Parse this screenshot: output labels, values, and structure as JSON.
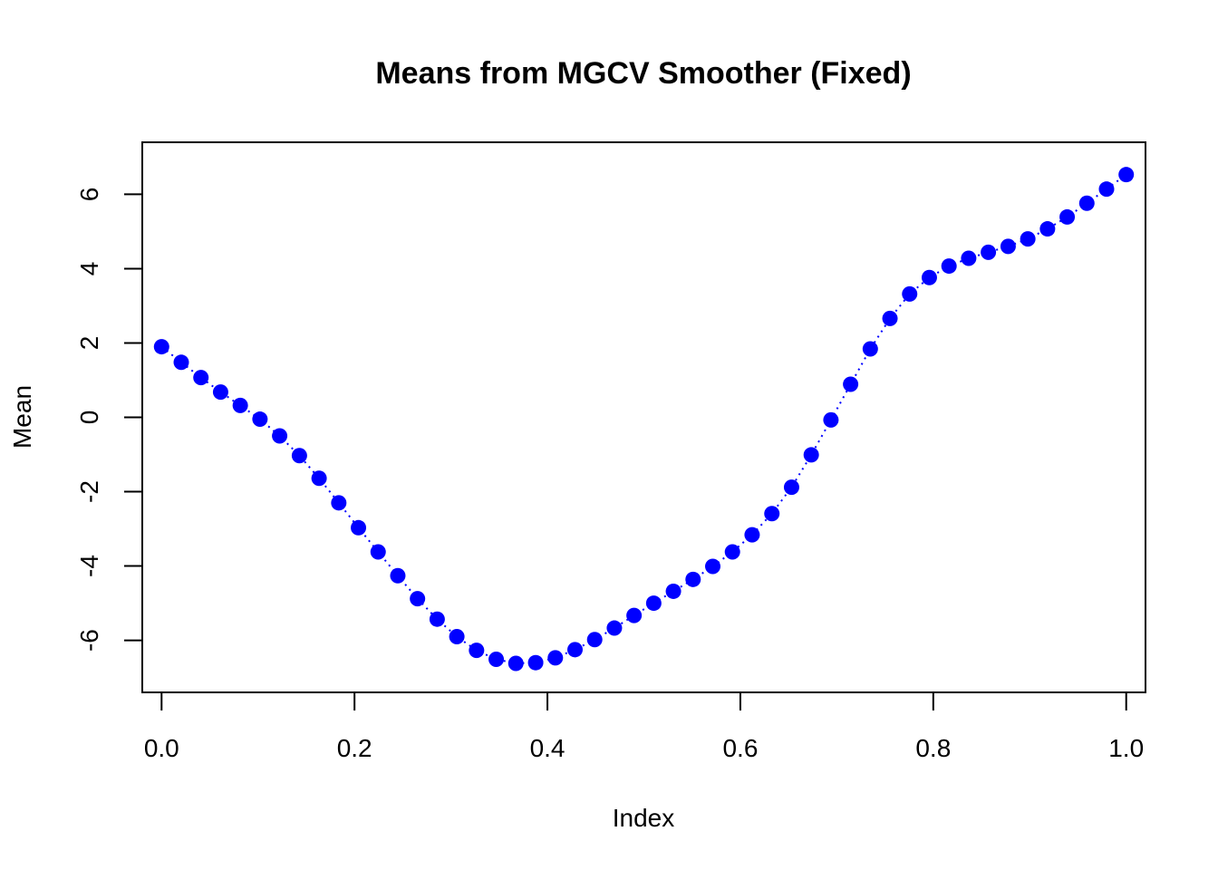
{
  "chart_data": {
    "type": "scatter",
    "title": "Means from MGCV Smoother (Fixed)",
    "xlabel": "Index",
    "ylabel": "Mean",
    "xlim": [
      -0.02,
      1.02
    ],
    "ylim": [
      -7.4,
      7.4
    ],
    "x_ticks": [
      0.0,
      0.2,
      0.4,
      0.6,
      0.8,
      1.0
    ],
    "x_tick_labels": [
      "0.0",
      "0.2",
      "0.4",
      "0.6",
      "0.8",
      "1.0"
    ],
    "y_ticks": [
      -6,
      -4,
      -2,
      0,
      2,
      4,
      6
    ],
    "y_tick_labels": [
      "-6",
      "-4",
      "-2",
      "0",
      "2",
      "4",
      "6"
    ],
    "grid": false,
    "point_color": "#0000FF",
    "line_color": "#0000FF",
    "line_style": "dotted",
    "x": [
      0.0,
      0.0204,
      0.0408,
      0.0612,
      0.0816,
      0.102,
      0.1224,
      0.1429,
      0.1633,
      0.1837,
      0.2041,
      0.2245,
      0.2449,
      0.2653,
      0.2857,
      0.3061,
      0.3265,
      0.3469,
      0.3673,
      0.3878,
      0.4082,
      0.4286,
      0.449,
      0.4694,
      0.4898,
      0.5102,
      0.5306,
      0.551,
      0.5714,
      0.5918,
      0.6122,
      0.6327,
      0.6531,
      0.6735,
      0.6939,
      0.7143,
      0.7347,
      0.7551,
      0.7755,
      0.7959,
      0.8163,
      0.8367,
      0.8571,
      0.8776,
      0.898,
      0.9184,
      0.9388,
      0.9592,
      0.9796,
      1.0
    ],
    "y": [
      1.9,
      1.48,
      1.07,
      0.68,
      0.32,
      -0.05,
      -0.5,
      -1.03,
      -1.64,
      -2.3,
      -2.97,
      -3.62,
      -4.26,
      -4.88,
      -5.43,
      -5.9,
      -6.27,
      -6.51,
      -6.62,
      -6.6,
      -6.47,
      -6.25,
      -5.98,
      -5.67,
      -5.33,
      -5.0,
      -4.68,
      -4.36,
      -4.01,
      -3.62,
      -3.16,
      -2.59,
      -1.88,
      -1.01,
      -0.07,
      0.89,
      1.84,
      2.66,
      3.32,
      3.76,
      4.07,
      4.28,
      4.44,
      4.6,
      4.8,
      5.07,
      5.39,
      5.76,
      6.14,
      6.53
    ]
  }
}
